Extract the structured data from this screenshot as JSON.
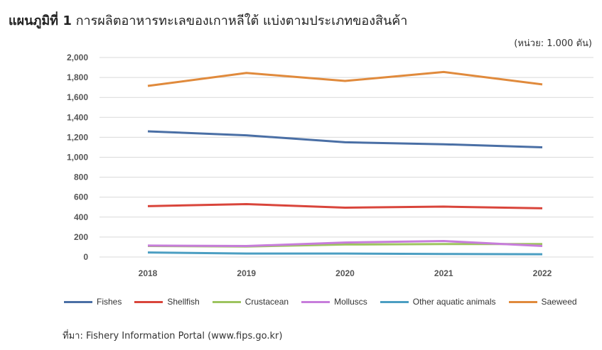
{
  "title": {
    "bold": "แผนภูมิที่ 1",
    "rest": "การผลิตอาหารทะเลของเกาหลีใต้ แบ่งตามประเภทของสินค้า"
  },
  "unit_label": "(หน่วย: 1.000 ตัน)",
  "source": "ที่มา: Fishery Information Portal (www.fips.go.kr)",
  "chart_data": {
    "type": "line",
    "x": [
      "2018",
      "2019",
      "2020",
      "2021",
      "2022"
    ],
    "ylim": [
      0,
      2000
    ],
    "yticks": [
      "0",
      "200",
      "400",
      "600",
      "800",
      "1,000",
      "1,200",
      "1,400",
      "1,600",
      "1,800",
      "2,000"
    ],
    "grid": true,
    "legend_position": "bottom",
    "series": [
      {
        "name": "Fishes",
        "color": "#4a6fa5",
        "values": [
          1260,
          1220,
          1150,
          1130,
          1100
        ]
      },
      {
        "name": "Shellfish",
        "color": "#d9453b",
        "values": [
          510,
          530,
          495,
          505,
          488
        ]
      },
      {
        "name": "Crustacean",
        "color": "#9dc45f",
        "values": [
          110,
          105,
          125,
          130,
          130
        ]
      },
      {
        "name": "Molluscs",
        "color": "#c77ddb",
        "values": [
          115,
          110,
          145,
          160,
          110
        ]
      },
      {
        "name": "Other aquatic animals",
        "color": "#4b9ec2",
        "values": [
          45,
          35,
          35,
          30,
          28
        ]
      },
      {
        "name": "Saeweed",
        "color": "#e08a3c",
        "values": [
          1715,
          1845,
          1765,
          1855,
          1730
        ]
      }
    ]
  }
}
